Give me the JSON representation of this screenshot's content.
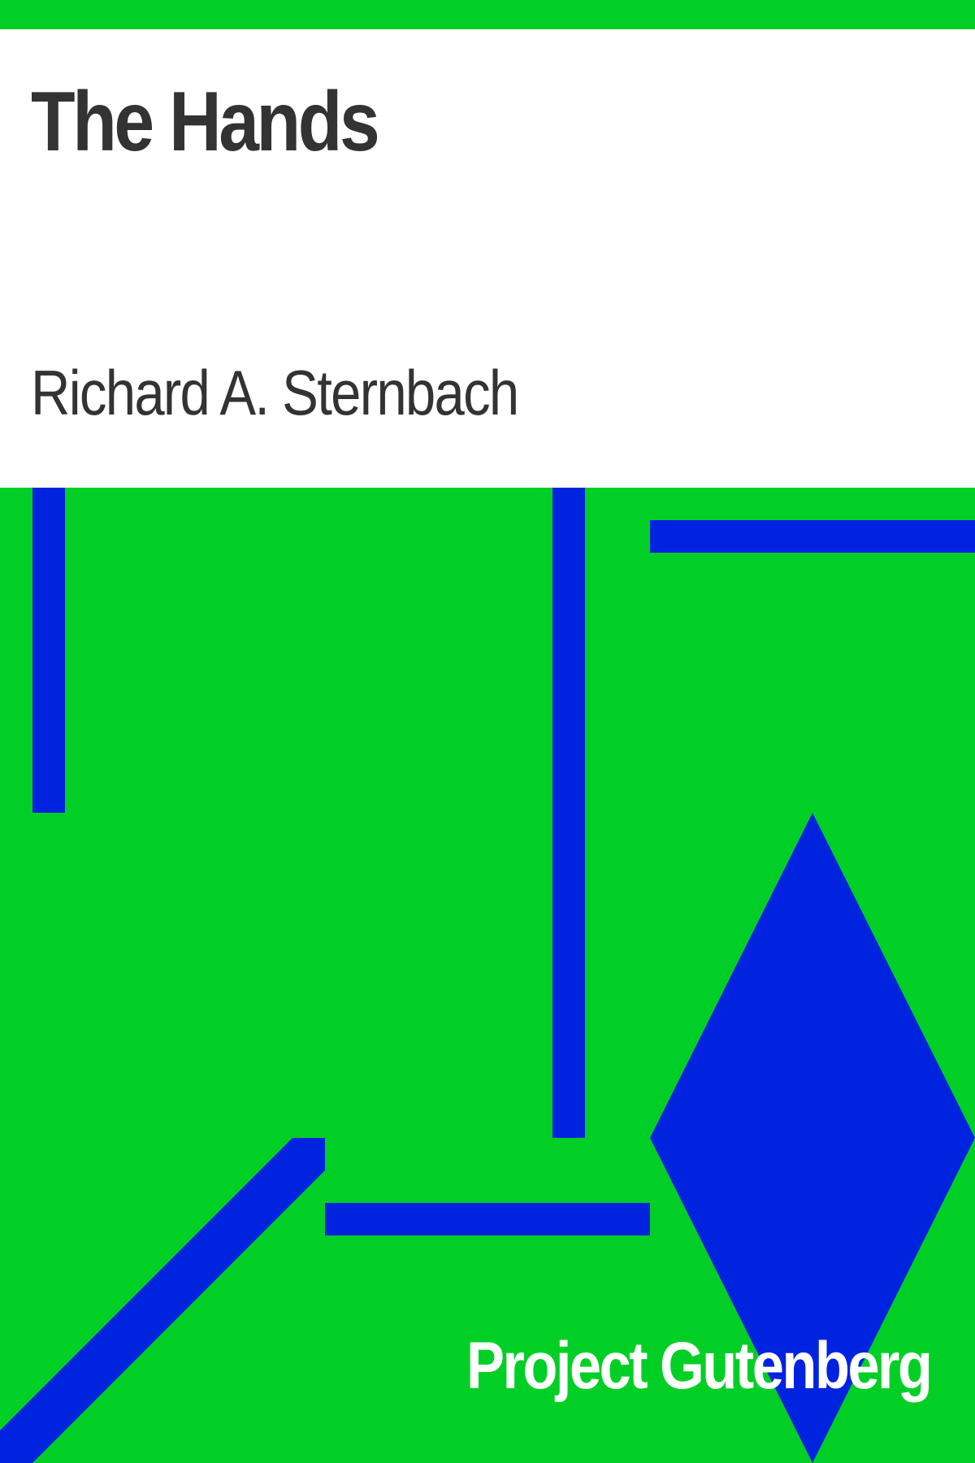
{
  "cover": {
    "title": "The Hands",
    "author": "Richard A. Sternbach",
    "publisher": "Project Gutenberg",
    "colors": {
      "background": "#02cf26",
      "panel": "#ffffff",
      "text": "#333333",
      "shapes": "#0023e0",
      "publisher_text": "#ffffff"
    }
  }
}
